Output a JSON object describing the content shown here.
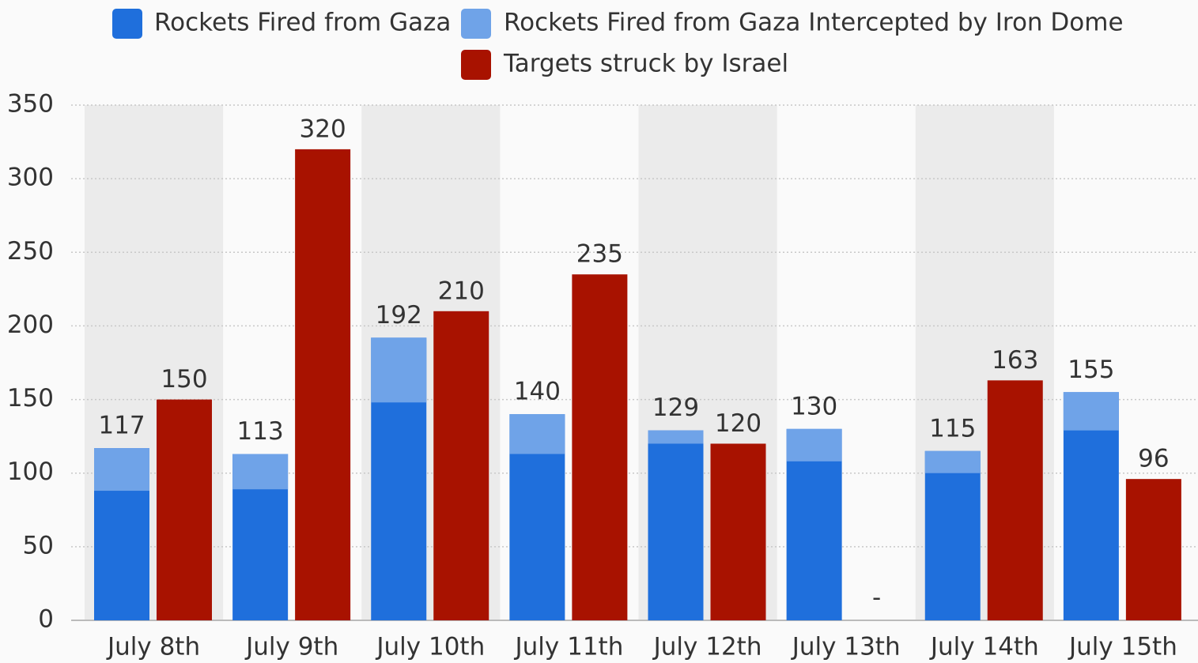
{
  "chart_data": {
    "type": "bar",
    "categories": [
      "July 8th",
      "July 9th",
      "July 10th",
      "July 11th",
      "July 12th",
      "July 13th",
      "July 14th",
      "July 15th"
    ],
    "series": [
      {
        "name": "Rockets Fired from Gaza",
        "color": "#1f6fdc",
        "values": [
          117,
          113,
          192,
          140,
          129,
          130,
          115,
          155
        ]
      },
      {
        "name": "Rockets Fired from Gaza Intercepted by Iron Dome",
        "color": "#6fa3e8",
        "values": [
          29,
          24,
          44,
          27,
          9,
          22,
          15,
          26
        ]
      },
      {
        "name": "Targets struck by Israel",
        "color": "#a81200",
        "values": [
          150,
          320,
          210,
          235,
          120,
          null,
          163,
          96
        ],
        "value_labels": [
          "150",
          "320",
          "210",
          "235",
          "120",
          "-",
          "163",
          "96"
        ]
      }
    ],
    "ylim": [
      0,
      350
    ],
    "yticks": [
      0,
      50,
      100,
      150,
      200,
      250,
      300,
      350
    ],
    "grid": true
  }
}
